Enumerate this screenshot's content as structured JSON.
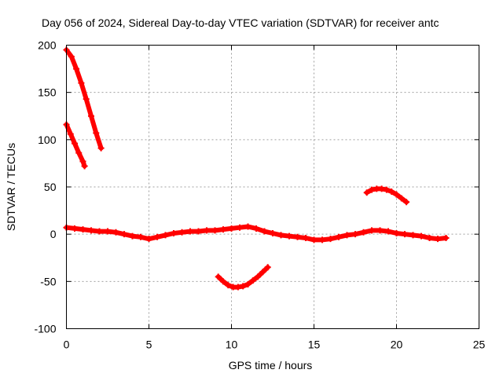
{
  "chart_data": {
    "type": "line",
    "title": "Day 056 of 2024, Sidereal Day-to-day VTEC variation (SDTVAR) for receiver antc",
    "xlabel": "GPS time / hours",
    "ylabel": "SDTVAR / TECUs",
    "xlim": [
      0,
      25
    ],
    "ylim": [
      -100,
      200
    ],
    "xticks": [
      0,
      5,
      10,
      15,
      20,
      25
    ],
    "yticks": [
      -100,
      -50,
      0,
      50,
      100,
      150,
      200
    ],
    "grid": true,
    "series_color": "#ff0000",
    "series": [
      {
        "name": "segment-1",
        "x": [
          0,
          0.3,
          0.6,
          0.9,
          1.2,
          1.5,
          1.8,
          2.1
        ],
        "y": [
          195,
          188,
          175,
          160,
          143,
          125,
          107,
          91
        ]
      },
      {
        "name": "segment-2",
        "x": [
          0,
          0.25,
          0.5,
          0.75,
          1.0,
          1.1
        ],
        "y": [
          116,
          106,
          96,
          86,
          77,
          72
        ]
      },
      {
        "name": "segment-3",
        "x": [
          0,
          0.5,
          1,
          1.5,
          2,
          2.5,
          3,
          3.5,
          4,
          4.5,
          5,
          5.5,
          6,
          6.5,
          7,
          7.5,
          8,
          8.5,
          9,
          9.5,
          10,
          10.5,
          11,
          11.5,
          12,
          12.5,
          13,
          13.5,
          14,
          14.5,
          15,
          15.5,
          16,
          16.5,
          17,
          17.5,
          18,
          18.5,
          19,
          19.5,
          20,
          20.5,
          21,
          21.5,
          22,
          22.5,
          23
        ],
        "y": [
          7,
          6,
          5,
          4,
          3,
          3,
          2,
          0,
          -2,
          -3,
          -5,
          -3,
          -1,
          1,
          2,
          3,
          3,
          4,
          4,
          5,
          6,
          7,
          8,
          6,
          3,
          1,
          -1,
          -2,
          -3,
          -4,
          -6,
          -6,
          -5,
          -3,
          -1,
          0,
          2,
          4,
          4,
          3,
          1,
          0,
          -1,
          -2,
          -4,
          -5,
          -4
        ]
      },
      {
        "name": "segment-4",
        "x": [
          9.2,
          9.5,
          9.8,
          10.1,
          10.4,
          10.7,
          11.0,
          11.3,
          11.6,
          11.9,
          12.2
        ],
        "y": [
          -45,
          -50,
          -54,
          -56,
          -56,
          -55,
          -53,
          -49,
          -45,
          -40,
          -35
        ]
      },
      {
        "name": "segment-5",
        "x": [
          18.2,
          18.5,
          18.8,
          19.1,
          19.4,
          19.7,
          20.0,
          20.3,
          20.6
        ],
        "y": [
          44,
          47,
          48,
          48,
          47,
          45,
          42,
          38,
          34
        ]
      }
    ]
  }
}
